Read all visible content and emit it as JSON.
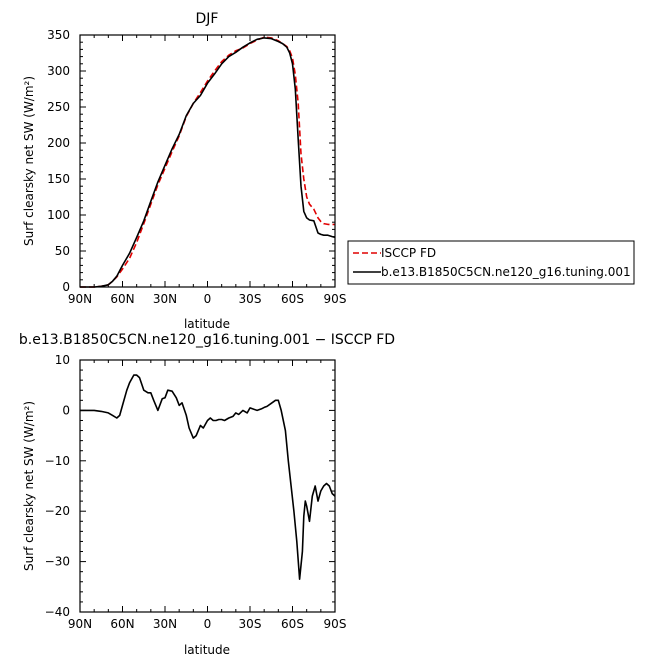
{
  "chart_data": [
    {
      "type": "line",
      "title": "DJF",
      "xlabel": "latitude",
      "ylabel": "Surf clearsky net SW (W/m²)",
      "x_ticks": [
        "90N",
        "60N",
        "30N",
        "0",
        "30S",
        "60S",
        "90S"
      ],
      "x_tick_values": [
        90,
        60,
        30,
        0,
        -30,
        -60,
        -90
      ],
      "y_ticks": [
        "0",
        "50",
        "100",
        "150",
        "200",
        "250",
        "300",
        "350"
      ],
      "xlim": [
        90,
        -90
      ],
      "ylim": [
        0,
        350
      ],
      "legend_position": "right",
      "series": [
        {
          "name": "ISCCP FD",
          "color": "#e00000",
          "dash": "dashed",
          "x": [
            90,
            85,
            80,
            75,
            70,
            67,
            64,
            60,
            55,
            50,
            45,
            40,
            35,
            30,
            25,
            20,
            15,
            10,
            5,
            0,
            -5,
            -10,
            -15,
            -20,
            -25,
            -30,
            -35,
            -40,
            -45,
            -50,
            -53,
            -56,
            -58,
            -60,
            -62,
            -64,
            -66,
            -68,
            -70,
            -72,
            -75,
            -78,
            -80,
            -82,
            -85,
            -88,
            -90
          ],
          "y": [
            0,
            0,
            0,
            1,
            3,
            8,
            14,
            25,
            40,
            62,
            88,
            115,
            142,
            165,
            188,
            210,
            237,
            255,
            270,
            286,
            300,
            313,
            322,
            328,
            332,
            338,
            343,
            347,
            346,
            342,
            338,
            334,
            328,
            318,
            295,
            255,
            185,
            150,
            125,
            115,
            108,
            96,
            91,
            88,
            87,
            87,
            87
          ]
        },
        {
          "name": "b.e13.B1850C5CN.ne120_g16.tuning.001",
          "color": "#000000",
          "dash": "solid",
          "x": [
            90,
            85,
            80,
            75,
            70,
            67,
            64,
            60,
            55,
            50,
            45,
            40,
            35,
            30,
            25,
            20,
            15,
            10,
            5,
            0,
            -5,
            -10,
            -15,
            -20,
            -25,
            -30,
            -35,
            -40,
            -45,
            -50,
            -53,
            -56,
            -58,
            -60,
            -62,
            -64,
            -66,
            -68,
            -70,
            -72,
            -75,
            -78,
            -80,
            -82,
            -85,
            -88,
            -90
          ],
          "y": [
            0,
            0,
            0,
            1,
            3,
            8,
            15,
            30,
            47,
            69,
            92,
            119,
            146,
            169,
            192,
            212,
            238,
            255,
            266,
            283,
            296,
            310,
            320,
            326,
            333,
            339,
            344,
            346,
            345,
            341,
            338,
            333,
            325,
            310,
            275,
            205,
            140,
            105,
            96,
            93,
            92,
            75,
            73,
            72,
            72,
            70,
            69
          ]
        }
      ]
    },
    {
      "type": "line",
      "title": "b.e13.B1850C5CN.ne120_g16.tuning.001 − ISCCP FD",
      "xlabel": "latitude",
      "ylabel": "Surf clearsky net SW (W/m²)",
      "x_ticks": [
        "90N",
        "60N",
        "30N",
        "0",
        "30S",
        "60S",
        "90S"
      ],
      "x_tick_values": [
        90,
        60,
        30,
        0,
        -30,
        -60,
        -90
      ],
      "y_ticks": [
        "10",
        "0",
        "−10",
        "−20",
        "−30",
        "−40"
      ],
      "y_tick_values": [
        10,
        0,
        -10,
        -20,
        -30,
        -40
      ],
      "xlim": [
        90,
        -90
      ],
      "ylim": [
        -40,
        10
      ],
      "series": [
        {
          "name": "",
          "color": "#000000",
          "x": [
            90,
            85,
            80,
            75,
            70,
            67,
            64,
            62,
            60,
            57,
            55,
            52,
            50,
            48,
            45,
            42,
            40,
            38,
            35,
            32,
            30,
            28,
            25,
            22,
            20,
            18,
            15,
            13,
            10,
            8,
            5,
            3,
            0,
            -2,
            -4,
            -6,
            -8,
            -10,
            -12,
            -15,
            -18,
            -20,
            -22,
            -25,
            -28,
            -30,
            -32,
            -35,
            -38,
            -40,
            -42,
            -45,
            -48,
            -50,
            -52,
            -55,
            -57,
            -59,
            -61,
            -63,
            -65,
            -67,
            -68,
            -69,
            -70,
            -72,
            -74,
            -76,
            -78,
            -80,
            -82,
            -84,
            -86,
            -88,
            -90
          ],
          "y": [
            0,
            0,
            0,
            -0.2,
            -0.5,
            -1,
            -1.5,
            -1,
            1,
            4,
            5.5,
            7,
            7,
            6.5,
            4,
            3.5,
            3.5,
            2,
            0,
            2.3,
            2.5,
            4,
            3.8,
            2.5,
            1,
            1.5,
            -1,
            -3.5,
            -5.5,
            -5,
            -3,
            -3.5,
            -2,
            -1.5,
            -2,
            -2,
            -1.8,
            -1.8,
            -2,
            -1.5,
            -1.2,
            -0.5,
            -0.8,
            0,
            -0.5,
            0.5,
            0.3,
            0,
            0.3,
            0.6,
            0.8,
            1.4,
            2,
            2,
            0,
            -4,
            -10,
            -15,
            -20,
            -26,
            -33.5,
            -28,
            -21,
            -18,
            -19,
            -22,
            -17,
            -15,
            -18,
            -16,
            -15,
            -14.5,
            -15,
            -16.5,
            -17
          ]
        }
      ]
    }
  ]
}
